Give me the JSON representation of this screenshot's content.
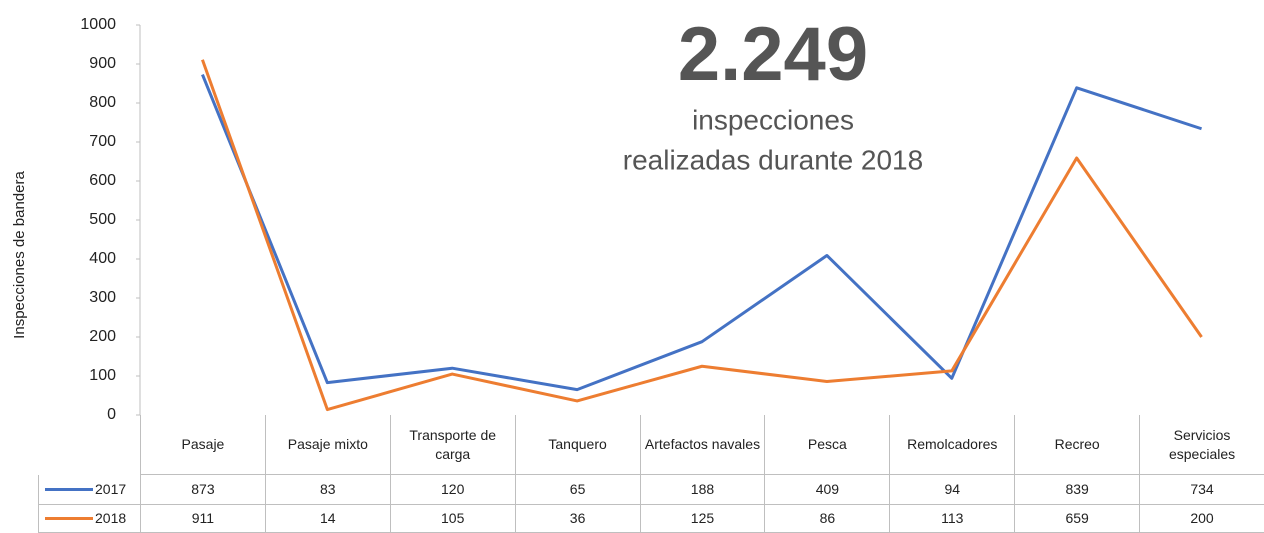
{
  "chart_data": {
    "type": "line",
    "annotations": [
      "2.249",
      "inspecciones",
      "realizadas durante 2018"
    ],
    "ylabel": "Inspecciones de bandera",
    "categories": [
      "Pasaje",
      "Pasaje mixto",
      "Transporte de carga",
      "Tanquero",
      "Artefactos navales",
      "Pesca",
      "Remolcadores",
      "Recreo",
      "Servicios especiales"
    ],
    "series": [
      {
        "name": "2017",
        "color": "#4472c4",
        "values": [
          873,
          83,
          120,
          65,
          188,
          409,
          94,
          839,
          734
        ]
      },
      {
        "name": "2018",
        "color": "#ed7d31",
        "values": [
          911,
          14,
          105,
          36,
          125,
          86,
          113,
          659,
          200
        ]
      }
    ],
    "ylim": [
      0,
      1000
    ],
    "yticks": [
      0,
      100,
      200,
      300,
      400,
      500,
      600,
      700,
      800,
      900,
      1000
    ],
    "grid": false
  }
}
